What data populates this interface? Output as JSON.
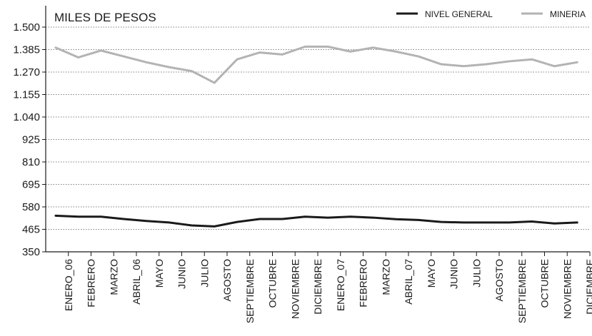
{
  "chart_data": {
    "type": "line",
    "ylabel": "MILES DE PESOS",
    "ylim": [
      350,
      1500
    ],
    "yticks": [
      "350",
      "465",
      "580",
      "695",
      "810",
      "925",
      "1.040",
      "1.155",
      "1.270",
      "1.385",
      "1.500"
    ],
    "grid": "horizontal dotted",
    "legend_position": "top-right",
    "categories": [
      "ENERO_06",
      "FEBRERO",
      "MARZO",
      "ABRIL_06",
      "MAYO",
      "JUNIO",
      "JULIO",
      "AGOSTO",
      "SEPTIEMBRE",
      "OCTUBRE",
      "NOVIEMBRE",
      "DICIEMBRE",
      "ENERO_07",
      "FEBRERO",
      "MARZO",
      "ABRIL_07",
      "MAYO",
      "JUNIO",
      "JULIO",
      "AGOSTO",
      "SEPTIEMBRE",
      "OCTUBRE",
      "NOVIEMBRE",
      "DICIEMBRE"
    ],
    "series": [
      {
        "name": "NIVEL GENERAL",
        "color": "#1a1a1a",
        "values": [
          535,
          530,
          530,
          518,
          508,
          500,
          485,
          480,
          503,
          518,
          518,
          530,
          525,
          530,
          525,
          517,
          513,
          503,
          500,
          500,
          500,
          505,
          495,
          500
        ]
      },
      {
        "name": "MINERIA",
        "color": "#b3b3b3",
        "values": [
          1395,
          1345,
          1380,
          1350,
          1320,
          1295,
          1275,
          1215,
          1335,
          1370,
          1360,
          1400,
          1400,
          1375,
          1395,
          1375,
          1350,
          1310,
          1300,
          1310,
          1325,
          1335,
          1300,
          1320
        ]
      }
    ]
  }
}
